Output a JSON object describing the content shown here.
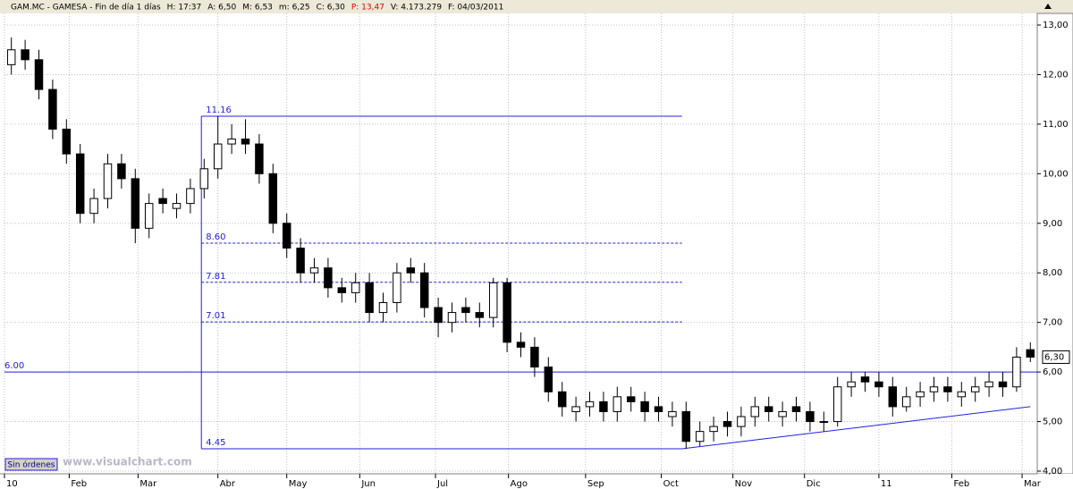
{
  "chart_data": {
    "type": "candlestick",
    "header": [
      {
        "text": "GAM.MC - GAMESA - Fin de día 1 días",
        "color": "#000000"
      },
      {
        "text": "H: 17:37",
        "color": "#000000"
      },
      {
        "text": "A: 6,50",
        "color": "#000000"
      },
      {
        "text": "M: 6,53",
        "color": "#000000"
      },
      {
        "text": "m: 6,25",
        "color": "#000000"
      },
      {
        "text": "C: 6,30",
        "color": "#000000"
      },
      {
        "text": "P: 13,47",
        "color": "#e00000"
      },
      {
        "text": "V: 4.173.279",
        "color": "#000000"
      },
      {
        "text": "F: 04/03/2011",
        "color": "#000000"
      }
    ],
    "button": "Sin órdenes",
    "watermark": "www.visualchart.com",
    "open": [
      12.2,
      12.5,
      12.3,
      11.7,
      10.9,
      10.4,
      9.2,
      9.5,
      10.2,
      9.9,
      8.9,
      9.5,
      9.3,
      9.4,
      9.7,
      10.1,
      10.6,
      10.7,
      10.6,
      10.0,
      9.0,
      8.5,
      8.0,
      8.1,
      7.7,
      7.6,
      7.8,
      7.2,
      7.4,
      8.1,
      8.0,
      7.3,
      7.0,
      7.3,
      7.2,
      7.1,
      7.8,
      6.6,
      6.5,
      6.1,
      5.6,
      5.2,
      5.3,
      5.4,
      5.2,
      5.5,
      5.4,
      5.3,
      5.1,
      5.2,
      4.6,
      4.8,
      5.0,
      4.9,
      5.1,
      5.3,
      5.1,
      5.3,
      5.2,
      5.0,
      5.0,
      5.7,
      5.9,
      5.8,
      5.7,
      5.3,
      5.5,
      5.6,
      5.7,
      5.5,
      5.6,
      5.7,
      5.8,
      5.7,
      6.45
    ],
    "high": [
      12.75,
      12.7,
      12.5,
      11.9,
      11.1,
      10.6,
      9.7,
      10.4,
      10.4,
      10.1,
      9.6,
      9.7,
      9.6,
      9.9,
      10.3,
      11.16,
      11.0,
      11.1,
      10.8,
      10.2,
      9.2,
      8.7,
      8.3,
      8.3,
      7.9,
      8.0,
      8.0,
      7.6,
      8.2,
      8.3,
      8.2,
      7.5,
      7.4,
      7.5,
      7.4,
      7.9,
      7.9,
      6.8,
      6.7,
      6.3,
      5.8,
      5.5,
      5.6,
      5.6,
      5.7,
      5.7,
      5.6,
      5.5,
      5.4,
      5.4,
      5.0,
      5.1,
      5.2,
      5.3,
      5.5,
      5.5,
      5.4,
      5.5,
      5.4,
      5.2,
      5.9,
      6.0,
      6.0,
      6.0,
      5.9,
      5.7,
      5.8,
      5.9,
      5.9,
      5.8,
      5.9,
      6.0,
      6.0,
      6.5,
      6.6
    ],
    "low": [
      12.0,
      12.1,
      11.5,
      10.7,
      10.2,
      9.0,
      9.0,
      9.3,
      9.7,
      8.6,
      8.7,
      9.2,
      9.1,
      9.2,
      9.5,
      9.9,
      10.4,
      10.4,
      9.8,
      8.8,
      8.3,
      7.8,
      7.8,
      7.5,
      7.4,
      7.4,
      7.0,
      7.0,
      7.2,
      7.8,
      7.1,
      6.7,
      6.8,
      7.0,
      6.9,
      6.9,
      6.4,
      6.3,
      5.9,
      5.4,
      5.1,
      5.0,
      5.1,
      5.0,
      5.0,
      5.2,
      5.0,
      5.0,
      4.9,
      4.45,
      4.5,
      4.6,
      4.7,
      4.7,
      4.9,
      5.0,
      4.9,
      5.0,
      4.8,
      4.8,
      4.9,
      5.5,
      5.6,
      5.5,
      5.1,
      5.2,
      5.3,
      5.4,
      5.4,
      5.3,
      5.4,
      5.5,
      5.5,
      5.6,
      6.2
    ],
    "close": [
      12.5,
      12.3,
      11.7,
      10.9,
      10.4,
      9.2,
      9.5,
      10.2,
      9.9,
      8.9,
      9.4,
      9.4,
      9.4,
      9.7,
      10.1,
      10.6,
      10.7,
      10.6,
      10.0,
      9.0,
      8.5,
      8.0,
      8.1,
      7.7,
      7.6,
      7.8,
      7.2,
      7.4,
      8.0,
      8.0,
      7.3,
      7.0,
      7.2,
      7.2,
      7.1,
      7.8,
      6.6,
      6.5,
      6.1,
      5.6,
      5.3,
      5.3,
      5.4,
      5.2,
      5.5,
      5.4,
      5.2,
      5.2,
      5.2,
      4.6,
      4.8,
      4.9,
      4.9,
      5.1,
      5.3,
      5.2,
      5.2,
      5.2,
      5.0,
      5.0,
      5.7,
      5.8,
      5.8,
      5.7,
      5.3,
      5.5,
      5.6,
      5.7,
      5.6,
      5.6,
      5.7,
      5.8,
      5.7,
      6.3,
      6.3
    ],
    "up_color": "#ffffff",
    "down_color": "#000000",
    "xlim": [
      0,
      75
    ],
    "xticks": [
      {
        "value": 0,
        "label": "10"
      },
      {
        "value": 4.7,
        "label": "Feb"
      },
      {
        "value": 9.7,
        "label": "Mar"
      },
      {
        "value": 15.5,
        "label": "Abr"
      },
      {
        "value": 20.5,
        "label": "May"
      },
      {
        "value": 25.8,
        "label": "Jun"
      },
      {
        "value": 31.3,
        "label": "Jul"
      },
      {
        "value": 36.6,
        "label": "Ago"
      },
      {
        "value": 42.2,
        "label": "Sep"
      },
      {
        "value": 47.7,
        "label": "Oct"
      },
      {
        "value": 52.9,
        "label": "Nov"
      },
      {
        "value": 58.1,
        "label": "Dic"
      },
      {
        "value": 63.5,
        "label": "11"
      },
      {
        "value": 68.8,
        "label": "Feb"
      },
      {
        "value": 73.9,
        "label": "Mar"
      }
    ],
    "ylim": [
      4,
      13
    ],
    "yticks": [
      {
        "value": 4,
        "label": "4,00"
      },
      {
        "value": 5,
        "label": "5,00"
      },
      {
        "value": 6,
        "label": "6,00"
      },
      {
        "value": 7,
        "label": "7,00"
      },
      {
        "value": 8,
        "label": "8,00"
      },
      {
        "value": 9,
        "label": "9,00"
      },
      {
        "value": 10,
        "label": "10,00"
      },
      {
        "value": 11,
        "label": "11,00"
      },
      {
        "value": 12,
        "label": "12,00"
      },
      {
        "value": 13,
        "label": "13,00"
      }
    ],
    "grid": true,
    "line_color": "#2020e0",
    "retracement": {
      "x": [
        14.3,
        49.2
      ],
      "levels": [
        {
          "value": 11.16,
          "label": "11.16",
          "dashed": false
        },
        {
          "value": 8.6,
          "label": "8.60",
          "dashed": true
        },
        {
          "value": 7.81,
          "label": "7.81",
          "dashed": true
        },
        {
          "value": 7.01,
          "label": "7.01",
          "dashed": true
        },
        {
          "value": 4.45,
          "label": "4.45",
          "dashed": false
        }
      ]
    },
    "support": {
      "value": 6,
      "label": "6.00"
    },
    "trendline": {
      "x": [
        49.2,
        74.5
      ],
      "y": [
        4.45,
        5.3
      ]
    },
    "last_price": {
      "value": 6.3,
      "label": "6,30"
    }
  }
}
